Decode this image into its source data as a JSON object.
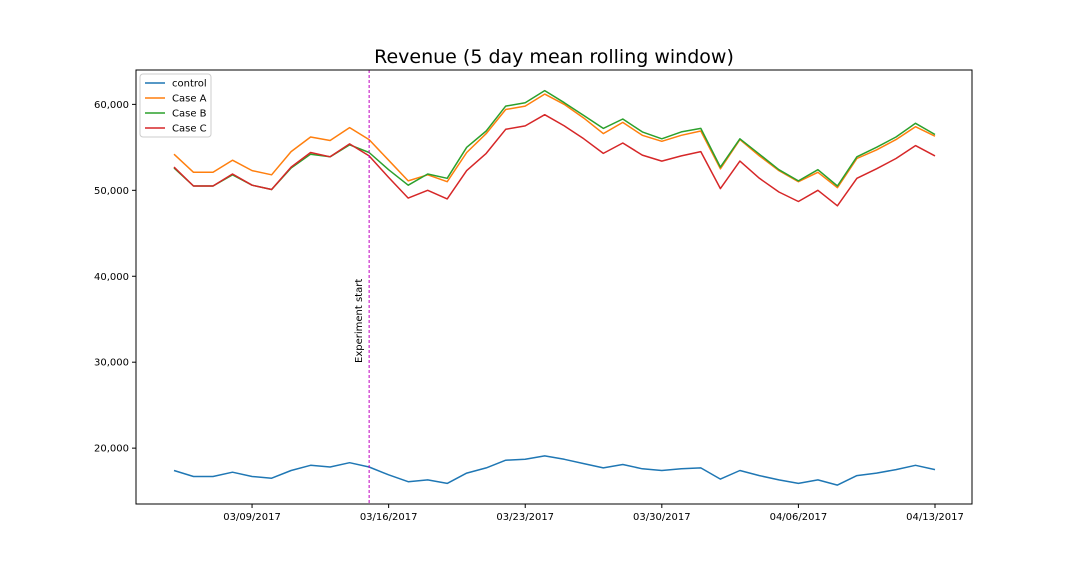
{
  "chart_data": {
    "type": "line",
    "title": "Revenue (5 day mean rolling window)",
    "xlabel": "",
    "ylabel": "",
    "x_ticks": [
      "03/09/2017",
      "03/16/2017",
      "03/23/2017",
      "03/30/2017",
      "04/06/2017",
      "04/13/2017"
    ],
    "y_ticks": [
      "20,000",
      "30,000",
      "40,000",
      "50,000",
      "60,000"
    ],
    "ylim": [
      13500,
      64000
    ],
    "x_start": "03/05/2017",
    "x_end": "04/13/2017",
    "grid": false,
    "legend_position": "top-left",
    "annotation": {
      "text": "Experiment start",
      "date": "03/15/2017",
      "color": "#bf00bf"
    },
    "dates": [
      "03/05/2017",
      "03/06/2017",
      "03/07/2017",
      "03/08/2017",
      "03/09/2017",
      "03/10/2017",
      "03/11/2017",
      "03/12/2017",
      "03/13/2017",
      "03/14/2017",
      "03/15/2017",
      "03/16/2017",
      "03/17/2017",
      "03/18/2017",
      "03/19/2017",
      "03/20/2017",
      "03/21/2017",
      "03/22/2017",
      "03/23/2017",
      "03/24/2017",
      "03/25/2017",
      "03/26/2017",
      "03/27/2017",
      "03/28/2017",
      "03/29/2017",
      "03/30/2017",
      "03/31/2017",
      "04/01/2017",
      "04/02/2017",
      "04/03/2017",
      "04/04/2017",
      "04/05/2017",
      "04/06/2017",
      "04/07/2017",
      "04/08/2017",
      "04/09/2017",
      "04/10/2017",
      "04/11/2017",
      "04/12/2017",
      "04/13/2017"
    ],
    "series": [
      {
        "name": "control",
        "color": "#1f77b4",
        "values": [
          17400,
          16700,
          16700,
          17200,
          16700,
          16500,
          17400,
          18000,
          17800,
          18300,
          17800,
          16900,
          16100,
          16300,
          15900,
          17100,
          17700,
          18600,
          18700,
          19100,
          18700,
          18200,
          17700,
          18100,
          17600,
          17400,
          17600,
          17700,
          16400,
          17400,
          16800,
          16300,
          15900,
          16300,
          15700,
          16800,
          17100,
          17500,
          18000,
          17500
        ]
      },
      {
        "name": "Case A",
        "color": "#ff7f0e",
        "values": [
          54200,
          52100,
          52100,
          53500,
          52300,
          51800,
          54500,
          56200,
          55800,
          57300,
          55900,
          53500,
          51100,
          51800,
          51000,
          54400,
          56600,
          59400,
          59800,
          61200,
          60000,
          58400,
          56600,
          57900,
          56400,
          55700,
          56400,
          56900,
          52500,
          55900,
          54000,
          52300,
          51000,
          52100,
          50300,
          53700,
          54700,
          55900,
          57400,
          56300
        ]
      },
      {
        "name": "Case B",
        "color": "#2ca02c",
        "values": [
          52600,
          50500,
          50500,
          51800,
          50600,
          50100,
          52600,
          54200,
          53900,
          55300,
          54400,
          52400,
          50600,
          51900,
          51400,
          55000,
          56900,
          59800,
          60200,
          61600,
          60200,
          58700,
          57200,
          58300,
          56800,
          56000,
          56800,
          57200,
          52700,
          56000,
          54200,
          52400,
          51100,
          52400,
          50500,
          53900,
          55000,
          56200,
          57800,
          56500
        ]
      },
      {
        "name": "Case C",
        "color": "#d62728",
        "values": [
          52700,
          50500,
          50500,
          51900,
          50600,
          50100,
          52700,
          54400,
          53900,
          55400,
          54000,
          51500,
          49100,
          50000,
          49000,
          52300,
          54300,
          57100,
          57500,
          58800,
          57500,
          56000,
          54300,
          55500,
          54100,
          53400,
          54000,
          54500,
          50200,
          53400,
          51400,
          49800,
          48700,
          50000,
          48200,
          51400,
          52500,
          53700,
          55200,
          54000
        ]
      }
    ]
  }
}
